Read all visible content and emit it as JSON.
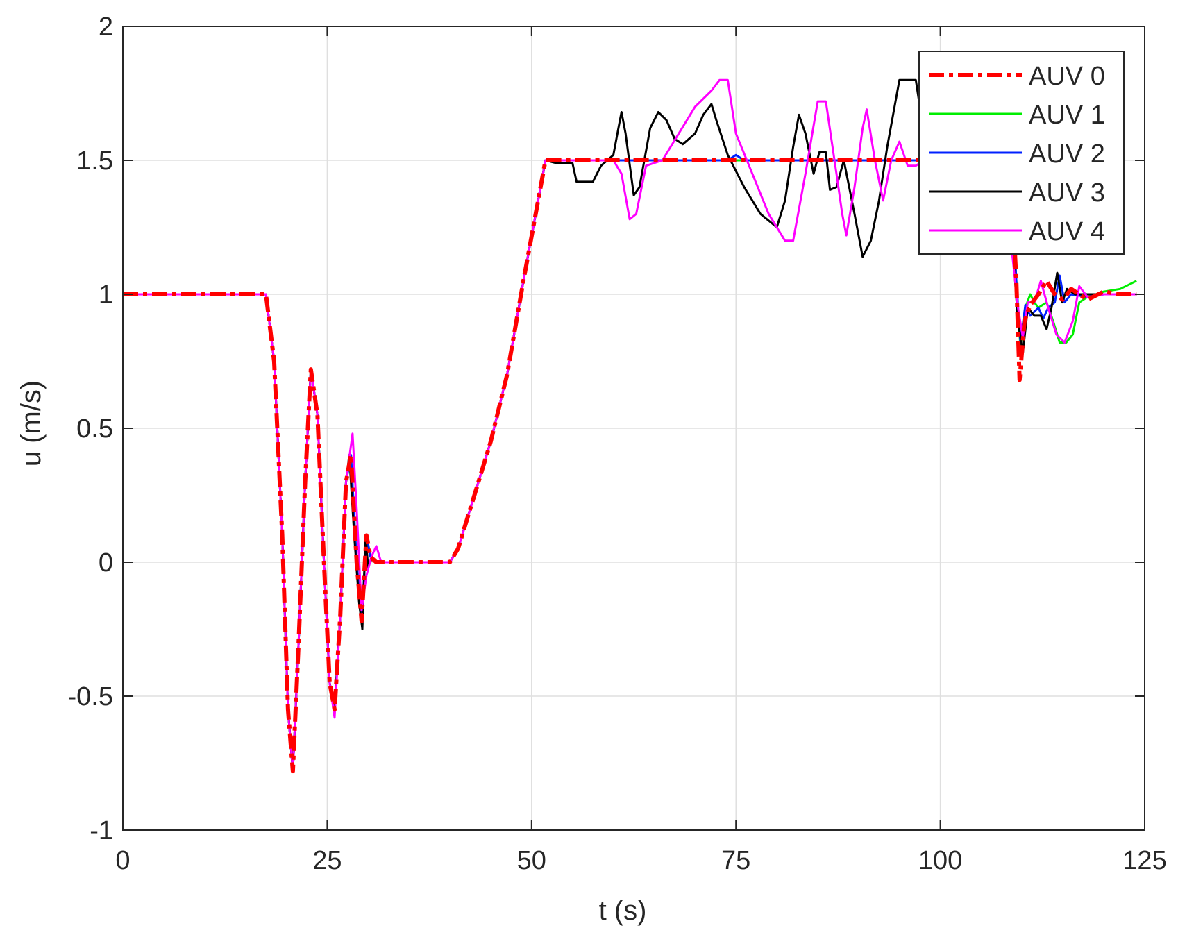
{
  "chart_data": {
    "type": "line",
    "title": "",
    "xlabel": "t (s)",
    "ylabel": "u (m/s)",
    "xlim": [
      0,
      125
    ],
    "ylim": [
      -1,
      2
    ],
    "xticks": [
      0,
      25,
      50,
      75,
      100,
      125
    ],
    "xtick_labels": [
      "0",
      "25",
      "50",
      "75",
      "100",
      "125"
    ],
    "yticks": [
      -1,
      -0.5,
      0,
      0.5,
      1,
      1.5,
      2
    ],
    "ytick_labels": [
      "-1",
      "-0.5",
      "0",
      "0.5",
      "1",
      "1.5",
      "2"
    ],
    "grid": true,
    "legend_position": "top-right",
    "series": [
      {
        "name": "AUV 0",
        "color": "#ff0000",
        "style": "dash-dot",
        "points": [
          [
            0,
            1
          ],
          [
            17.5,
            1
          ],
          [
            18.5,
            0.75
          ],
          [
            19.5,
            0.1
          ],
          [
            20.2,
            -0.55
          ],
          [
            20.8,
            -0.78
          ],
          [
            21.5,
            -0.3
          ],
          [
            22.3,
            0.3
          ],
          [
            23,
            0.72
          ],
          [
            23.8,
            0.55
          ],
          [
            24.6,
            0
          ],
          [
            25.3,
            -0.45
          ],
          [
            25.9,
            -0.55
          ],
          [
            26.6,
            -0.2
          ],
          [
            27.3,
            0.3
          ],
          [
            27.9,
            0.4
          ],
          [
            28.6,
            0
          ],
          [
            29.2,
            -0.22
          ],
          [
            29.8,
            0.1
          ],
          [
            30.3,
            0.02
          ],
          [
            31,
            0
          ],
          [
            40,
            0
          ],
          [
            41,
            0.05
          ],
          [
            43,
            0.25
          ],
          [
            45,
            0.45
          ],
          [
            47,
            0.7
          ],
          [
            49,
            1.05
          ],
          [
            50.5,
            1.3
          ],
          [
            51.7,
            1.5
          ],
          [
            108,
            1.5
          ],
          [
            108.8,
            1.35
          ],
          [
            109.3,
            1.05
          ],
          [
            109.7,
            0.68
          ],
          [
            110.3,
            0.9
          ],
          [
            111,
            0.96
          ],
          [
            112,
            1.0
          ],
          [
            113,
            1.05
          ],
          [
            114,
            1.0
          ],
          [
            115,
            0.98
          ],
          [
            116,
            1.02
          ],
          [
            118,
            0.98
          ],
          [
            120,
            1.01
          ],
          [
            122,
            1.0
          ],
          [
            124,
            1.0
          ]
        ]
      },
      {
        "name": "AUV 1",
        "color": "#00ee00",
        "style": "solid",
        "points": [
          [
            0,
            1
          ],
          [
            17.5,
            1
          ],
          [
            18.5,
            0.75
          ],
          [
            19.5,
            0.1
          ],
          [
            20.2,
            -0.55
          ],
          [
            20.8,
            -0.78
          ],
          [
            21.5,
            -0.3
          ],
          [
            22.3,
            0.3
          ],
          [
            23,
            0.72
          ],
          [
            23.8,
            0.55
          ],
          [
            24.6,
            0
          ],
          [
            25.3,
            -0.45
          ],
          [
            25.9,
            -0.55
          ],
          [
            26.6,
            -0.2
          ],
          [
            27.3,
            0.3
          ],
          [
            27.9,
            0.4
          ],
          [
            28.6,
            0
          ],
          [
            29.2,
            -0.22
          ],
          [
            29.8,
            0.1
          ],
          [
            30.3,
            0.02
          ],
          [
            31,
            0
          ],
          [
            40,
            0
          ],
          [
            41,
            0.05
          ],
          [
            43,
            0.25
          ],
          [
            45,
            0.45
          ],
          [
            47,
            0.7
          ],
          [
            49,
            1.05
          ],
          [
            50.5,
            1.3
          ],
          [
            51.7,
            1.5
          ],
          [
            108,
            1.5
          ],
          [
            108.8,
            1.35
          ],
          [
            109.3,
            1.05
          ],
          [
            109.8,
            0.8
          ],
          [
            110.4,
            0.95
          ],
          [
            111,
            1.0
          ],
          [
            111.5,
            0.97
          ],
          [
            112,
            0.95
          ],
          [
            113,
            0.97
          ],
          [
            113.8,
            0.9
          ],
          [
            114.6,
            0.82
          ],
          [
            115.4,
            0.82
          ],
          [
            116.2,
            0.85
          ],
          [
            117,
            0.97
          ],
          [
            118,
            0.99
          ],
          [
            120,
            1.01
          ],
          [
            122,
            1.02
          ],
          [
            124,
            1.05
          ]
        ]
      },
      {
        "name": "AUV 2",
        "color": "#0020ff",
        "style": "solid",
        "points": [
          [
            0,
            1
          ],
          [
            17.5,
            1
          ],
          [
            18.5,
            0.75
          ],
          [
            19.5,
            0.1
          ],
          [
            20.2,
            -0.55
          ],
          [
            20.8,
            -0.78
          ],
          [
            21.5,
            -0.3
          ],
          [
            22.3,
            0.3
          ],
          [
            23,
            0.72
          ],
          [
            23.8,
            0.55
          ],
          [
            24.6,
            0
          ],
          [
            25.3,
            -0.45
          ],
          [
            25.9,
            -0.55
          ],
          [
            26.6,
            -0.2
          ],
          [
            27.3,
            0.3
          ],
          [
            27.9,
            0.4
          ],
          [
            28.6,
            0
          ],
          [
            29.2,
            -0.22
          ],
          [
            29.8,
            0.1
          ],
          [
            30.3,
            0.02
          ],
          [
            31,
            0
          ],
          [
            40,
            0
          ],
          [
            41,
            0.05
          ],
          [
            43,
            0.25
          ],
          [
            45,
            0.45
          ],
          [
            47,
            0.7
          ],
          [
            49,
            1.05
          ],
          [
            50.5,
            1.3
          ],
          [
            51.7,
            1.5
          ],
          [
            74,
            1.5
          ],
          [
            75,
            1.52
          ],
          [
            76,
            1.5
          ],
          [
            108,
            1.5
          ],
          [
            108.8,
            1.35
          ],
          [
            109.3,
            1.05
          ],
          [
            109.8,
            0.82
          ],
          [
            110.4,
            0.96
          ],
          [
            111,
            0.92
          ],
          [
            112,
            0.95
          ],
          [
            112.6,
            0.91
          ],
          [
            113.2,
            0.95
          ],
          [
            114,
            0.97
          ],
          [
            114.6,
            1.07
          ],
          [
            115.2,
            0.97
          ],
          [
            116,
            1.0
          ],
          [
            118,
            0.99
          ],
          [
            120,
            1.0
          ],
          [
            122,
            1.0
          ],
          [
            124,
            1.0
          ]
        ]
      },
      {
        "name": "AUV 3",
        "color": "#000000",
        "style": "solid",
        "points": [
          [
            0,
            1
          ],
          [
            17.5,
            1
          ],
          [
            18.5,
            0.75
          ],
          [
            19.5,
            0.1
          ],
          [
            20.2,
            -0.55
          ],
          [
            20.8,
            -0.78
          ],
          [
            21.5,
            -0.3
          ],
          [
            22.3,
            0.3
          ],
          [
            23,
            0.72
          ],
          [
            23.8,
            0.55
          ],
          [
            24.6,
            0
          ],
          [
            25.3,
            -0.45
          ],
          [
            25.9,
            -0.55
          ],
          [
            26.6,
            -0.2
          ],
          [
            27.3,
            0.3
          ],
          [
            27.7,
            0.4
          ],
          [
            28.3,
            0.1
          ],
          [
            28.9,
            -0.15
          ],
          [
            29.3,
            -0.25
          ],
          [
            29.7,
            0.1
          ],
          [
            30.0,
            -0.02
          ],
          [
            30.5,
            0.02
          ],
          [
            31,
            0
          ],
          [
            40,
            0
          ],
          [
            41,
            0.05
          ],
          [
            43,
            0.25
          ],
          [
            45,
            0.45
          ],
          [
            47,
            0.7
          ],
          [
            49,
            1.05
          ],
          [
            50.5,
            1.3
          ],
          [
            51.7,
            1.5
          ],
          [
            53,
            1.49
          ],
          [
            55,
            1.49
          ],
          [
            55.5,
            1.42
          ],
          [
            57.5,
            1.42
          ],
          [
            58.5,
            1.48
          ],
          [
            60,
            1.52
          ],
          [
            60.5,
            1.6
          ],
          [
            61,
            1.68
          ],
          [
            61.5,
            1.6
          ],
          [
            62.5,
            1.37
          ],
          [
            63.2,
            1.4
          ],
          [
            64.5,
            1.62
          ],
          [
            65.5,
            1.68
          ],
          [
            66.5,
            1.65
          ],
          [
            67.5,
            1.58
          ],
          [
            68.5,
            1.56
          ],
          [
            70,
            1.6
          ],
          [
            71,
            1.67
          ],
          [
            72,
            1.71
          ],
          [
            72.6,
            1.65
          ],
          [
            74,
            1.52
          ],
          [
            76,
            1.4
          ],
          [
            78,
            1.3
          ],
          [
            80,
            1.25
          ],
          [
            81,
            1.35
          ],
          [
            82,
            1.55
          ],
          [
            82.7,
            1.67
          ],
          [
            83.5,
            1.6
          ],
          [
            84.5,
            1.45
          ],
          [
            85.2,
            1.53
          ],
          [
            86,
            1.53
          ],
          [
            86.5,
            1.39
          ],
          [
            87.3,
            1.4
          ],
          [
            88.2,
            1.5
          ],
          [
            89.5,
            1.3
          ],
          [
            90.5,
            1.14
          ],
          [
            91.5,
            1.2
          ],
          [
            92.5,
            1.35
          ],
          [
            93.5,
            1.55
          ],
          [
            95,
            1.8
          ],
          [
            97,
            1.8
          ],
          [
            98,
            1.6
          ],
          [
            99,
            1.45
          ],
          [
            100,
            1.4
          ],
          [
            104,
            1.45
          ],
          [
            108,
            1.35
          ],
          [
            108.8,
            1.2
          ],
          [
            109.5,
            0.9
          ],
          [
            110.1,
            0.78
          ],
          [
            110.7,
            0.95
          ],
          [
            111.5,
            0.92
          ],
          [
            112.3,
            0.92
          ],
          [
            113,
            0.87
          ],
          [
            113.6,
            0.95
          ],
          [
            114.3,
            1.08
          ],
          [
            114.9,
            0.97
          ],
          [
            115.5,
            1.02
          ],
          [
            116.5,
            1.0
          ],
          [
            118,
            1.0
          ],
          [
            120,
            1.0
          ],
          [
            122,
            1.0
          ],
          [
            124,
            1.0
          ]
        ]
      },
      {
        "name": "AUV 4",
        "color": "#ff00ff",
        "style": "solid",
        "points": [
          [
            0,
            1
          ],
          [
            17.5,
            1
          ],
          [
            18.5,
            0.75
          ],
          [
            19.5,
            0.1
          ],
          [
            20.2,
            -0.55
          ],
          [
            20.8,
            -0.78
          ],
          [
            21.5,
            -0.3
          ],
          [
            22.3,
            0.3
          ],
          [
            23,
            0.72
          ],
          [
            23.8,
            0.55
          ],
          [
            24.6,
            0
          ],
          [
            25.3,
            -0.45
          ],
          [
            25.9,
            -0.58
          ],
          [
            26.6,
            -0.2
          ],
          [
            27.3,
            0.3
          ],
          [
            28.1,
            0.48
          ],
          [
            28.6,
            0.2
          ],
          [
            29.2,
            -0.18
          ],
          [
            29.8,
            -0.05
          ],
          [
            30.4,
            0.02
          ],
          [
            31,
            0.06
          ],
          [
            31.6,
            0
          ],
          [
            40,
            0
          ],
          [
            41,
            0.05
          ],
          [
            43,
            0.25
          ],
          [
            45,
            0.45
          ],
          [
            47,
            0.7
          ],
          [
            49,
            1.05
          ],
          [
            50.5,
            1.3
          ],
          [
            51.7,
            1.5
          ],
          [
            60,
            1.5
          ],
          [
            61,
            1.45
          ],
          [
            62,
            1.28
          ],
          [
            62.8,
            1.3
          ],
          [
            64,
            1.48
          ],
          [
            66,
            1.5
          ],
          [
            68,
            1.6
          ],
          [
            70,
            1.7
          ],
          [
            72,
            1.76
          ],
          [
            73,
            1.8
          ],
          [
            74,
            1.8
          ],
          [
            75,
            1.6
          ],
          [
            77,
            1.45
          ],
          [
            79,
            1.3
          ],
          [
            81,
            1.2
          ],
          [
            82,
            1.2
          ],
          [
            83.5,
            1.45
          ],
          [
            85,
            1.72
          ],
          [
            86,
            1.72
          ],
          [
            87.3,
            1.45
          ],
          [
            88,
            1.3
          ],
          [
            88.5,
            1.22
          ],
          [
            89.5,
            1.4
          ],
          [
            90.5,
            1.62
          ],
          [
            91,
            1.69
          ],
          [
            92,
            1.5
          ],
          [
            93,
            1.35
          ],
          [
            94,
            1.5
          ],
          [
            95,
            1.57
          ],
          [
            96,
            1.48
          ],
          [
            97,
            1.48
          ],
          [
            98,
            1.5
          ],
          [
            104,
            1.52
          ],
          [
            108,
            1.3
          ],
          [
            108.8,
            1.15
          ],
          [
            109.5,
            0.95
          ],
          [
            110.1,
            0.84
          ],
          [
            110.7,
            0.97
          ],
          [
            111.5,
            0.97
          ],
          [
            112.3,
            1.05
          ],
          [
            113.2,
            0.95
          ],
          [
            114.2,
            0.85
          ],
          [
            115.2,
            0.82
          ],
          [
            116.2,
            0.9
          ],
          [
            117,
            1.03
          ],
          [
            118,
            0.99
          ],
          [
            120,
            1.0
          ],
          [
            122,
            1.0
          ],
          [
            124,
            1.0
          ]
        ]
      }
    ]
  }
}
